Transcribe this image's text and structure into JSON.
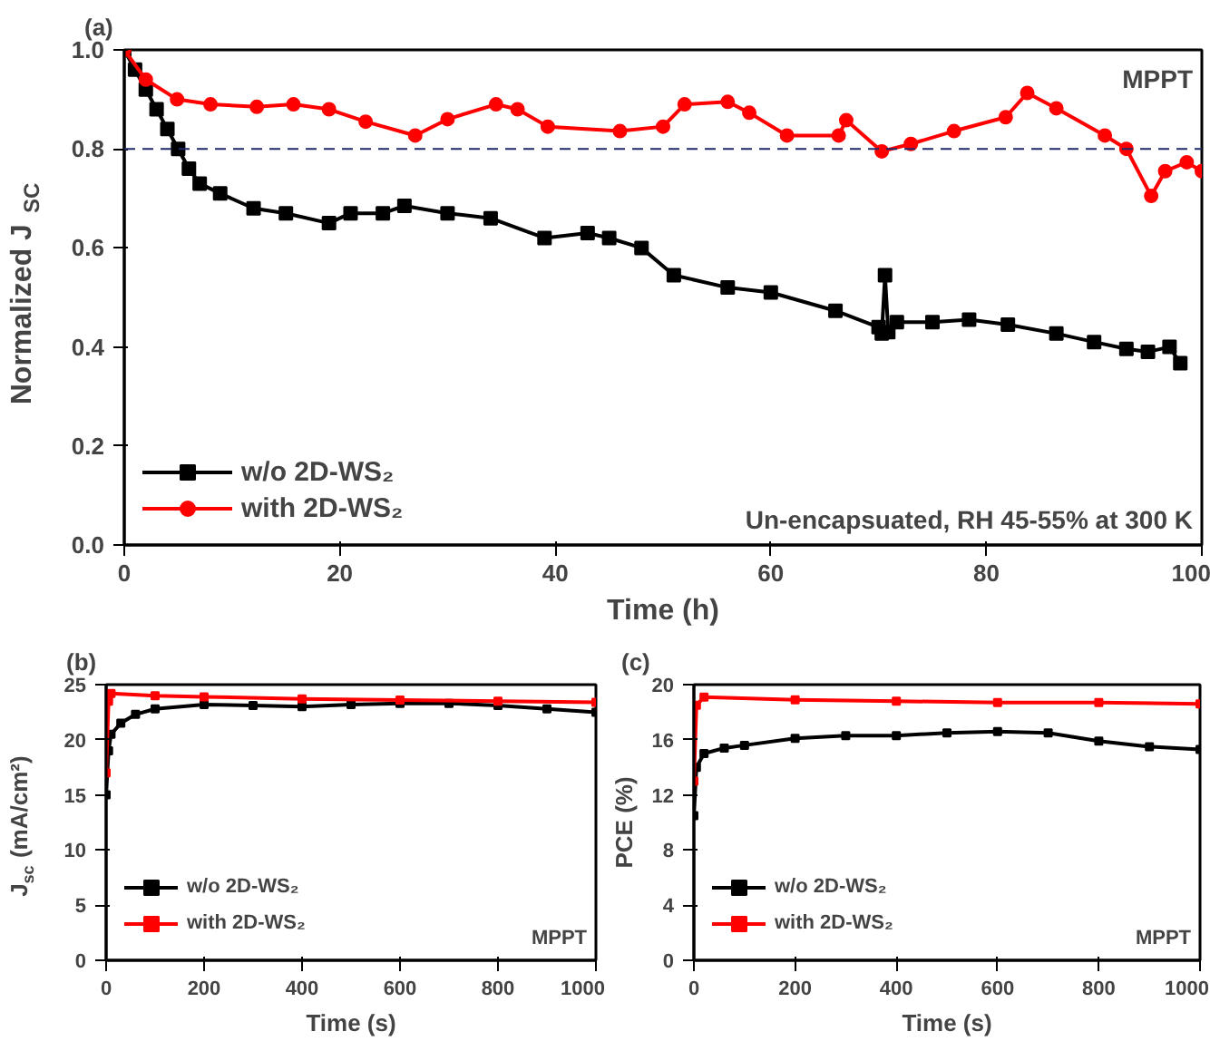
{
  "chart_data": [
    {
      "type": "line",
      "xlabel": "Time (h)",
      "ylabel": "Normalized J$_{SC}$",
      "xlim": [
        0,
        100
      ],
      "ylim": [
        0,
        1.0
      ],
      "xticks": [
        0,
        20,
        40,
        60,
        80,
        100
      ],
      "yticks": [
        {
          "value": 0,
          "label": "0.0"
        },
        0.2,
        0.4,
        0.6,
        0.8,
        {
          "value": 1,
          "label": "1.0"
        }
      ],
      "grid": false,
      "legend": "bottom left",
      "annotations": [
        "(a)",
        "MPPT",
        "Un-encapsuated, RH 45-55% at 300 K"
      ],
      "ref_lines": [
        {
          "axis": "y",
          "value": 0.8,
          "label": null,
          "color": "#1f2a6b",
          "line_style": "dashed"
        }
      ],
      "series": [
        {
          "name": "w/o 2D-WS₂",
          "color": "#000000",
          "marker": "square",
          "x": [
            0,
            1,
            2,
            3,
            4,
            5,
            6,
            7,
            8.9,
            12,
            15,
            19,
            21,
            24,
            26,
            30,
            34,
            39,
            43,
            45,
            48,
            51,
            56,
            60,
            66,
            70,
            70.3,
            70.6,
            70.9,
            71.7,
            75,
            78.4,
            82,
            86.5,
            90,
            93,
            95,
            97,
            98
          ],
          "values": [
            1.0,
            0.96,
            0.92,
            0.88,
            0.84,
            0.8,
            0.76,
            0.73,
            0.71,
            0.68,
            0.67,
            0.65,
            0.67,
            0.67,
            0.685,
            0.67,
            0.66,
            0.62,
            0.63,
            0.62,
            0.6,
            0.545,
            0.52,
            0.51,
            0.473,
            0.44,
            0.427,
            0.545,
            0.43,
            0.45,
            0.45,
            0.455,
            0.445,
            0.427,
            0.41,
            0.396,
            0.39,
            0.4,
            0.367
          ]
        },
        {
          "name": "with 2D-WS₂",
          "color": "#ff0000",
          "marker": "circle",
          "x": [
            0,
            2,
            4.9,
            8,
            12.3,
            15.7,
            19,
            22.4,
            27,
            30,
            34.5,
            36.5,
            39.3,
            46,
            50,
            52,
            56,
            58,
            61.5,
            66.3,
            67,
            70.3,
            73,
            77,
            81.8,
            83.8,
            86.5,
            91,
            93,
            95.3,
            96.6,
            98.6,
            100
          ],
          "values": [
            1.0,
            0.94,
            0.9,
            0.89,
            0.885,
            0.89,
            0.88,
            0.855,
            0.827,
            0.86,
            0.89,
            0.88,
            0.845,
            0.836,
            0.845,
            0.89,
            0.895,
            0.873,
            0.827,
            0.827,
            0.858,
            0.795,
            0.81,
            0.836,
            0.864,
            0.913,
            0.882,
            0.827,
            0.8,
            0.705,
            0.755,
            0.773,
            0.755
          ]
        }
      ]
    },
    {
      "type": "line",
      "xlabel": "Time (s)",
      "ylabel": "J$_{sc}$ (mA/cm²)",
      "xlim": [
        0,
        1000
      ],
      "ylim": [
        0,
        25
      ],
      "xticks": [
        0,
        200,
        400,
        600,
        800,
        1000
      ],
      "yticks": [
        0,
        5,
        10,
        15,
        20,
        25
      ],
      "grid": false,
      "legend": "bottom left",
      "annotations": [
        "(b)",
        "MPPT"
      ],
      "series": [
        {
          "name": "w/o 2D-WS₂",
          "color": "#000000",
          "marker": "square",
          "x": [
            0,
            5,
            10,
            30,
            60,
            100,
            200,
            300,
            400,
            500,
            600,
            700,
            800,
            900,
            1000
          ],
          "values": [
            15,
            19,
            20.5,
            21.5,
            22.3,
            22.8,
            23.2,
            23.1,
            23.0,
            23.2,
            23.3,
            23.3,
            23.1,
            22.8,
            22.5
          ]
        },
        {
          "name": "with 2D-WS₂",
          "color": "#ff0000",
          "marker": "square",
          "x": [
            0,
            5,
            10,
            100,
            200,
            400,
            600,
            800,
            1000
          ],
          "values": [
            17,
            23.5,
            24.2,
            24.0,
            23.9,
            23.7,
            23.6,
            23.5,
            23.4
          ]
        }
      ]
    },
    {
      "type": "line",
      "xlabel": "Time (s)",
      "ylabel": "PCE (%)",
      "xlim": [
        0,
        1000
      ],
      "ylim": [
        0,
        20
      ],
      "xticks": [
        0,
        200,
        400,
        600,
        800,
        1000
      ],
      "yticks": [
        0,
        4,
        8,
        12,
        16,
        20
      ],
      "grid": false,
      "legend": "bottom left",
      "annotations": [
        "(c)",
        "MPPT"
      ],
      "series": [
        {
          "name": "w/o 2D-WS₂",
          "color": "#000000",
          "marker": "square",
          "x": [
            0,
            5,
            20,
            60,
            100,
            200,
            300,
            400,
            500,
            600,
            700,
            800,
            900,
            1000
          ],
          "values": [
            10.5,
            14,
            15,
            15.4,
            15.6,
            16.1,
            16.3,
            16.3,
            16.5,
            16.6,
            16.5,
            15.9,
            15.5,
            15.3
          ]
        },
        {
          "name": "with 2D-WS₂",
          "color": "#ff0000",
          "marker": "square",
          "x": [
            0,
            5,
            20,
            200,
            400,
            600,
            800,
            1000
          ],
          "values": [
            13,
            18.5,
            19.1,
            18.9,
            18.8,
            18.7,
            18.7,
            18.6
          ]
        }
      ]
    }
  ]
}
